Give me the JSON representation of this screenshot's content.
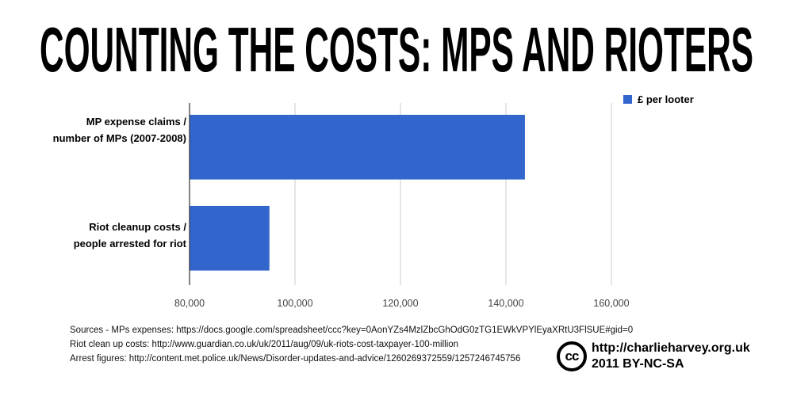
{
  "chart_data": {
    "type": "bar",
    "orientation": "horizontal",
    "title": "COUNTING THE COSTS: MPS AND RIOTERS",
    "categories": [
      "MP expense claims / number of MPs (2007-2008)",
      "Riot cleanup costs / people arrested for riot"
    ],
    "category_lines": [
      [
        "MP expense claims /",
        "number of MPs (2007-2008)"
      ],
      [
        "Riot cleanup costs /",
        "people arrested for riot"
      ]
    ],
    "series": [
      {
        "name": "£ per looter",
        "values": [
          143600,
          95150
        ],
        "color": "#3366cc"
      }
    ],
    "xlim": [
      80000,
      160000
    ],
    "xticks": [
      80000,
      100000,
      120000,
      140000,
      160000
    ],
    "xtick_labels": [
      "80,000",
      "100,000",
      "120,000",
      "140,000",
      "160,000"
    ],
    "xlabel": "",
    "ylabel": "",
    "grid": true,
    "legend_position": "top-right"
  },
  "sources": [
    "Sources - MPs expenses: https://docs.google.com/spreadsheet/ccc?key=0AonYZs4MzlZbcGhOdG0zTG1EWkVPYlEyaXRtU3FlSUE#gid=0",
    "Riot clean up costs: http://www.guardian.co.uk/uk/2011/aug/09/uk-riots-cost-taxpayer-100-million",
    "Arrest figures: http://content.met.police.uk/News/Disorder-updates-and-advice/1260269372559/1257246745756"
  ],
  "credit": {
    "cc_logo": "cc",
    "url": "http://charlieharvey.org.uk",
    "license": "2011 BY-NC-SA"
  }
}
